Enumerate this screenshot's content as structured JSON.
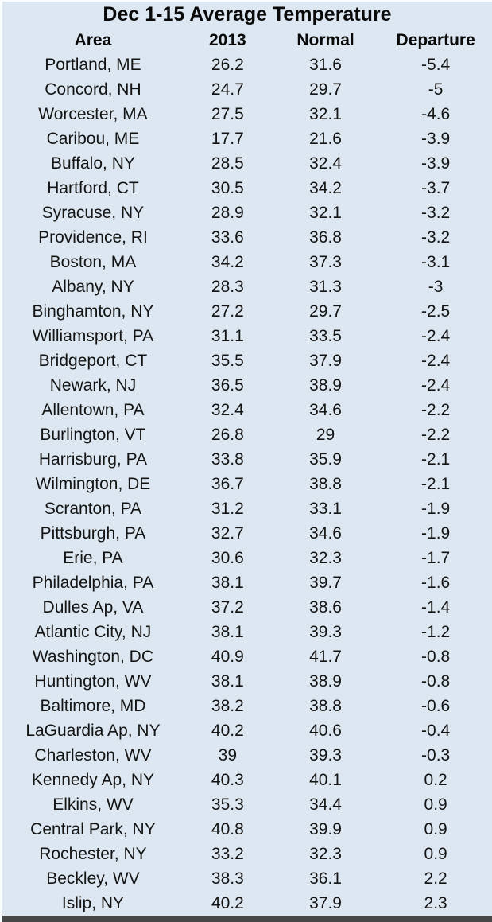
{
  "colors": {
    "background": "#dce7f1",
    "text": "#0d0d0d",
    "bottom_border": "#474747",
    "edge_highlight": "#fafdff"
  },
  "chart_data": {
    "type": "table",
    "title": "Dec 1-15 Average Temperature",
    "columns": [
      "Area",
      "2013",
      "Normal",
      "Departure"
    ],
    "rows": [
      [
        "Portland, ME",
        "26.2",
        "31.6",
        "-5.4"
      ],
      [
        "Concord, NH",
        "24.7",
        "29.7",
        "-5"
      ],
      [
        "Worcester, MA",
        "27.5",
        "32.1",
        "-4.6"
      ],
      [
        "Caribou, ME",
        "17.7",
        "21.6",
        "-3.9"
      ],
      [
        "Buffalo, NY",
        "28.5",
        "32.4",
        "-3.9"
      ],
      [
        "Hartford, CT",
        "30.5",
        "34.2",
        "-3.7"
      ],
      [
        "Syracuse, NY",
        "28.9",
        "32.1",
        "-3.2"
      ],
      [
        "Providence, RI",
        "33.6",
        "36.8",
        "-3.2"
      ],
      [
        "Boston, MA",
        "34.2",
        "37.3",
        "-3.1"
      ],
      [
        "Albany, NY",
        "28.3",
        "31.3",
        "-3"
      ],
      [
        "Binghamton, NY",
        "27.2",
        "29.7",
        "-2.5"
      ],
      [
        "Williamsport, PA",
        "31.1",
        "33.5",
        "-2.4"
      ],
      [
        "Bridgeport, CT",
        "35.5",
        "37.9",
        "-2.4"
      ],
      [
        "Newark, NJ",
        "36.5",
        "38.9",
        "-2.4"
      ],
      [
        "Allentown, PA",
        "32.4",
        "34.6",
        "-2.2"
      ],
      [
        "Burlington, VT",
        "26.8",
        "29",
        "-2.2"
      ],
      [
        "Harrisburg, PA",
        "33.8",
        "35.9",
        "-2.1"
      ],
      [
        "Wilmington, DE",
        "36.7",
        "38.8",
        "-2.1"
      ],
      [
        "Scranton, PA",
        "31.2",
        "33.1",
        "-1.9"
      ],
      [
        "Pittsburgh, PA",
        "32.7",
        "34.6",
        "-1.9"
      ],
      [
        "Erie, PA",
        "30.6",
        "32.3",
        "-1.7"
      ],
      [
        "Philadelphia, PA",
        "38.1",
        "39.7",
        "-1.6"
      ],
      [
        "Dulles Ap, VA",
        "37.2",
        "38.6",
        "-1.4"
      ],
      [
        "Atlantic City, NJ",
        "38.1",
        "39.3",
        "-1.2"
      ],
      [
        "Washington, DC",
        "40.9",
        "41.7",
        "-0.8"
      ],
      [
        "Huntington, WV",
        "38.1",
        "38.9",
        "-0.8"
      ],
      [
        "Baltimore, MD",
        "38.2",
        "38.8",
        "-0.6"
      ],
      [
        "LaGuardia Ap, NY",
        "40.2",
        "40.6",
        "-0.4"
      ],
      [
        "Charleston, WV",
        "39",
        "39.3",
        "-0.3"
      ],
      [
        "Kennedy Ap, NY",
        "40.3",
        "40.1",
        "0.2"
      ],
      [
        "Elkins, WV",
        "35.3",
        "34.4",
        "0.9"
      ],
      [
        "Central Park, NY",
        "40.8",
        "39.9",
        "0.9"
      ],
      [
        "Rochester, NY",
        "33.2",
        "32.3",
        "0.9"
      ],
      [
        "Beckley, WV",
        "38.3",
        "36.1",
        "2.2"
      ],
      [
        "Islip, NY",
        "40.2",
        "37.9",
        "2.3"
      ]
    ]
  }
}
